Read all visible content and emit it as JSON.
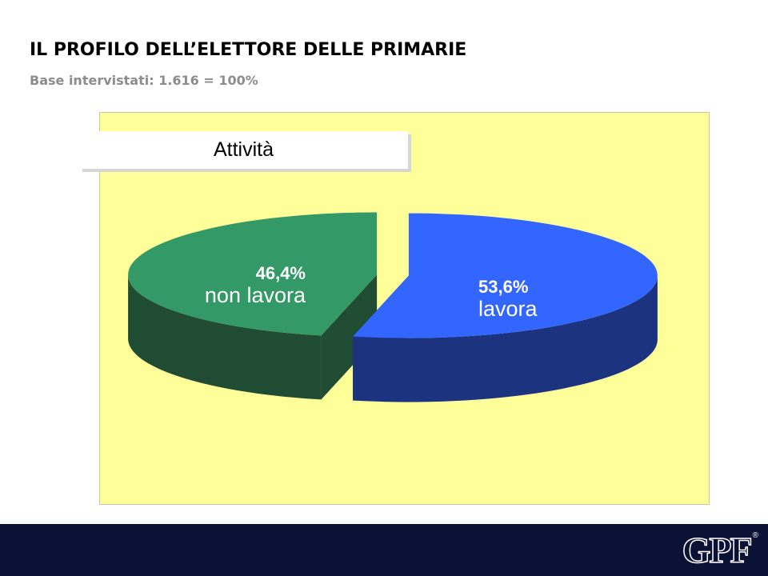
{
  "header": {
    "title": "IL PROFILO DELL’ELETTORE DELLE PRIMARIE",
    "subtitle": "Base intervistati: 1.616 = 100%"
  },
  "chart_data": {
    "type": "pie",
    "title": "Attività",
    "three_d": true,
    "exploded": true,
    "slices": [
      {
        "label": "lavora",
        "value": 53.6,
        "value_label": "53,6%",
        "color": "#3366ff",
        "side_color": "#1c3380"
      },
      {
        "label": "non lavora",
        "value": 46.4,
        "value_label": "46,4%",
        "color": "#339966",
        "side_color": "#1f4c33"
      }
    ],
    "background_color": "#ffff99"
  },
  "footer": {
    "logo_text": "GPF",
    "logo_mark": "®"
  },
  "colors": {
    "footer_bg": "#0c1236",
    "subtitle": "#8c8c8c"
  }
}
